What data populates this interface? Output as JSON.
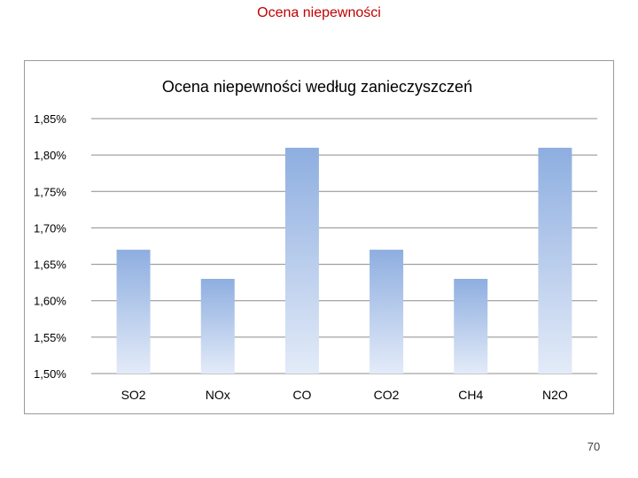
{
  "slide": {
    "title": "Ocena niepewności",
    "page_number": "70"
  },
  "colors": {
    "title": "#c00000",
    "bar_top": "#8eaee0",
    "bar_bottom": "#e3ebf8",
    "gridline": "#8c8c8c",
    "frame": "#9a9a9a"
  },
  "chart_data": {
    "type": "bar",
    "title": "Ocena niepewności według zanieczyszczeń",
    "xlabel": "",
    "ylabel": "",
    "categories": [
      "SO2",
      "NOx",
      "CO",
      "CO2",
      "CH4",
      "N2O"
    ],
    "values": [
      1.67,
      1.63,
      1.81,
      1.67,
      1.63,
      1.81
    ],
    "value_unit": "%",
    "ylim": [
      1.5,
      1.85
    ],
    "yticks": [
      1.5,
      1.55,
      1.6,
      1.65,
      1.7,
      1.75,
      1.8,
      1.85
    ],
    "ytick_labels": [
      "1,50%",
      "1,55%",
      "1,60%",
      "1,65%",
      "1,70%",
      "1,75%",
      "1,80%",
      "1,85%"
    ],
    "grid": true,
    "legend": "none"
  }
}
